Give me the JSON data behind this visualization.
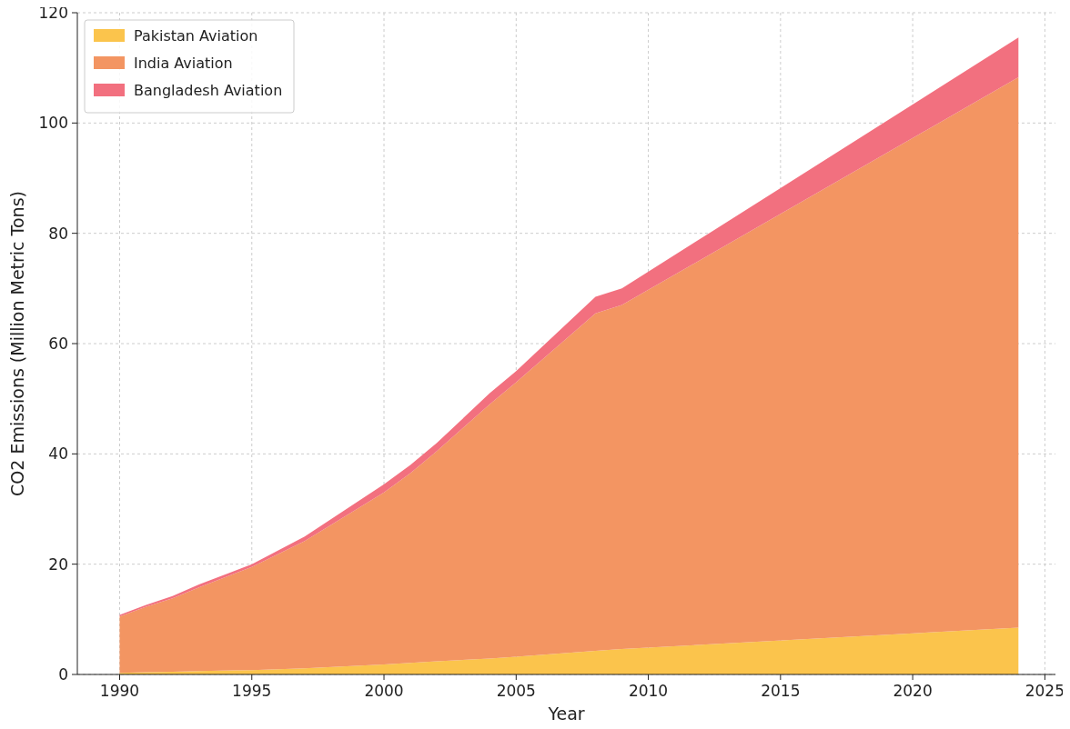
{
  "chart_data": {
    "type": "area",
    "stacked": true,
    "xlabel": "Year",
    "ylabel": "CO2 Emissions (Million Metric Tons)",
    "x": [
      1990,
      1991,
      1992,
      1993,
      1995,
      1997,
      2000,
      2001,
      2002,
      2004,
      2005,
      2008,
      2009,
      2024
    ],
    "series": [
      {
        "name": "Pakistan Aviation",
        "color": "#fbc44c",
        "values": [
          0.3,
          0.4,
          0.5,
          0.6,
          0.8,
          1.1,
          1.8,
          2.1,
          2.4,
          2.9,
          3.2,
          4.3,
          4.6,
          8.5
        ]
      },
      {
        "name": "India Aviation",
        "color": "#f39562",
        "values": [
          10.2,
          11.9,
          13.3,
          15.2,
          18.7,
          23.1,
          31.2,
          34.4,
          38.1,
          46.1,
          49.8,
          61.2,
          62.4,
          99.8
        ]
      },
      {
        "name": "Bangladesh Aviation",
        "color": "#f2707f",
        "values": [
          0.3,
          0.3,
          0.4,
          0.5,
          0.5,
          0.8,
          1.5,
          1.5,
          1.5,
          2,
          2,
          3,
          3,
          7.2
        ]
      }
    ],
    "xlim": [
      1988.4,
      2025.4
    ],
    "xticks": [
      1990,
      1995,
      2000,
      2005,
      2010,
      2015,
      2020,
      2025
    ],
    "ylim": [
      0,
      120
    ],
    "yticks": [
      0,
      20,
      40,
      60,
      80,
      100,
      120
    ],
    "grid": true,
    "legend": "top left"
  }
}
